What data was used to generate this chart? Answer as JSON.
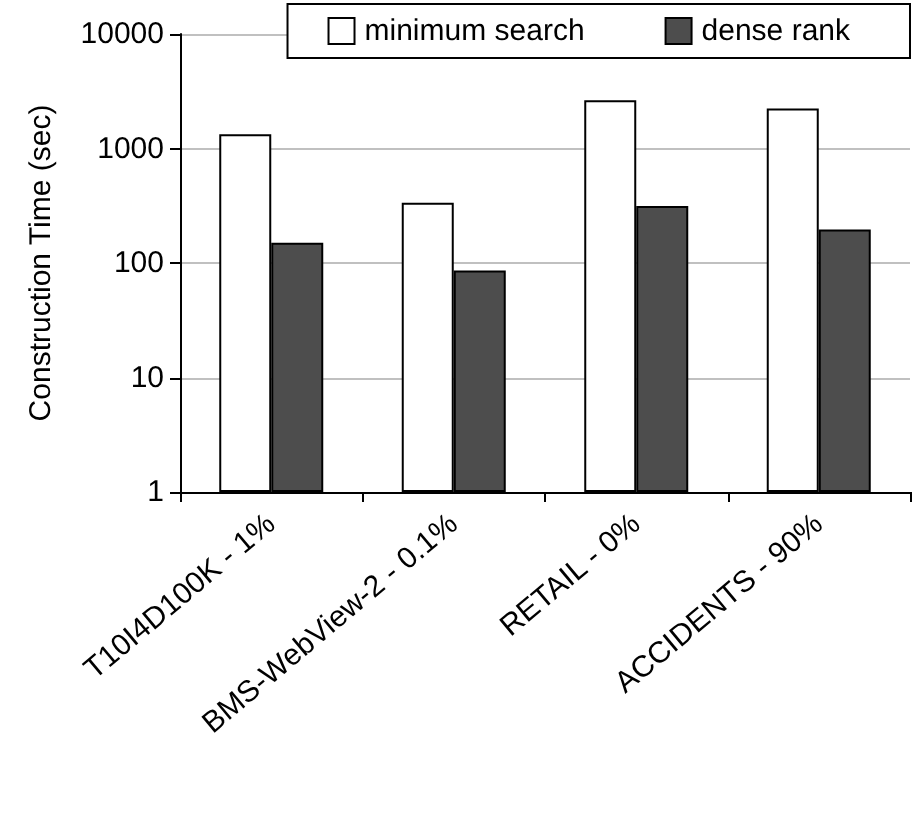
{
  "chart_data": {
    "type": "bar",
    "ylabel": "Construction Time (sec)",
    "categories": [
      "T10I4D100K - 1%",
      "BMS-WebView-2 - 0.1%",
      "RETAIL - 0%",
      "ACCIDENTS - 90%"
    ],
    "series": [
      {
        "name": "minimum search",
        "color": "#ffffff",
        "values": [
          1330,
          336,
          2640,
          2240
        ]
      },
      {
        "name": "dense rank",
        "color": "#4d4d4d",
        "values": [
          150,
          86,
          314,
          196
        ]
      }
    ],
    "log": true,
    "ylim": [
      1,
      10000
    ],
    "yticks": [
      1,
      10,
      100,
      1000,
      10000
    ],
    "grid": "y",
    "legend": "top right"
  }
}
